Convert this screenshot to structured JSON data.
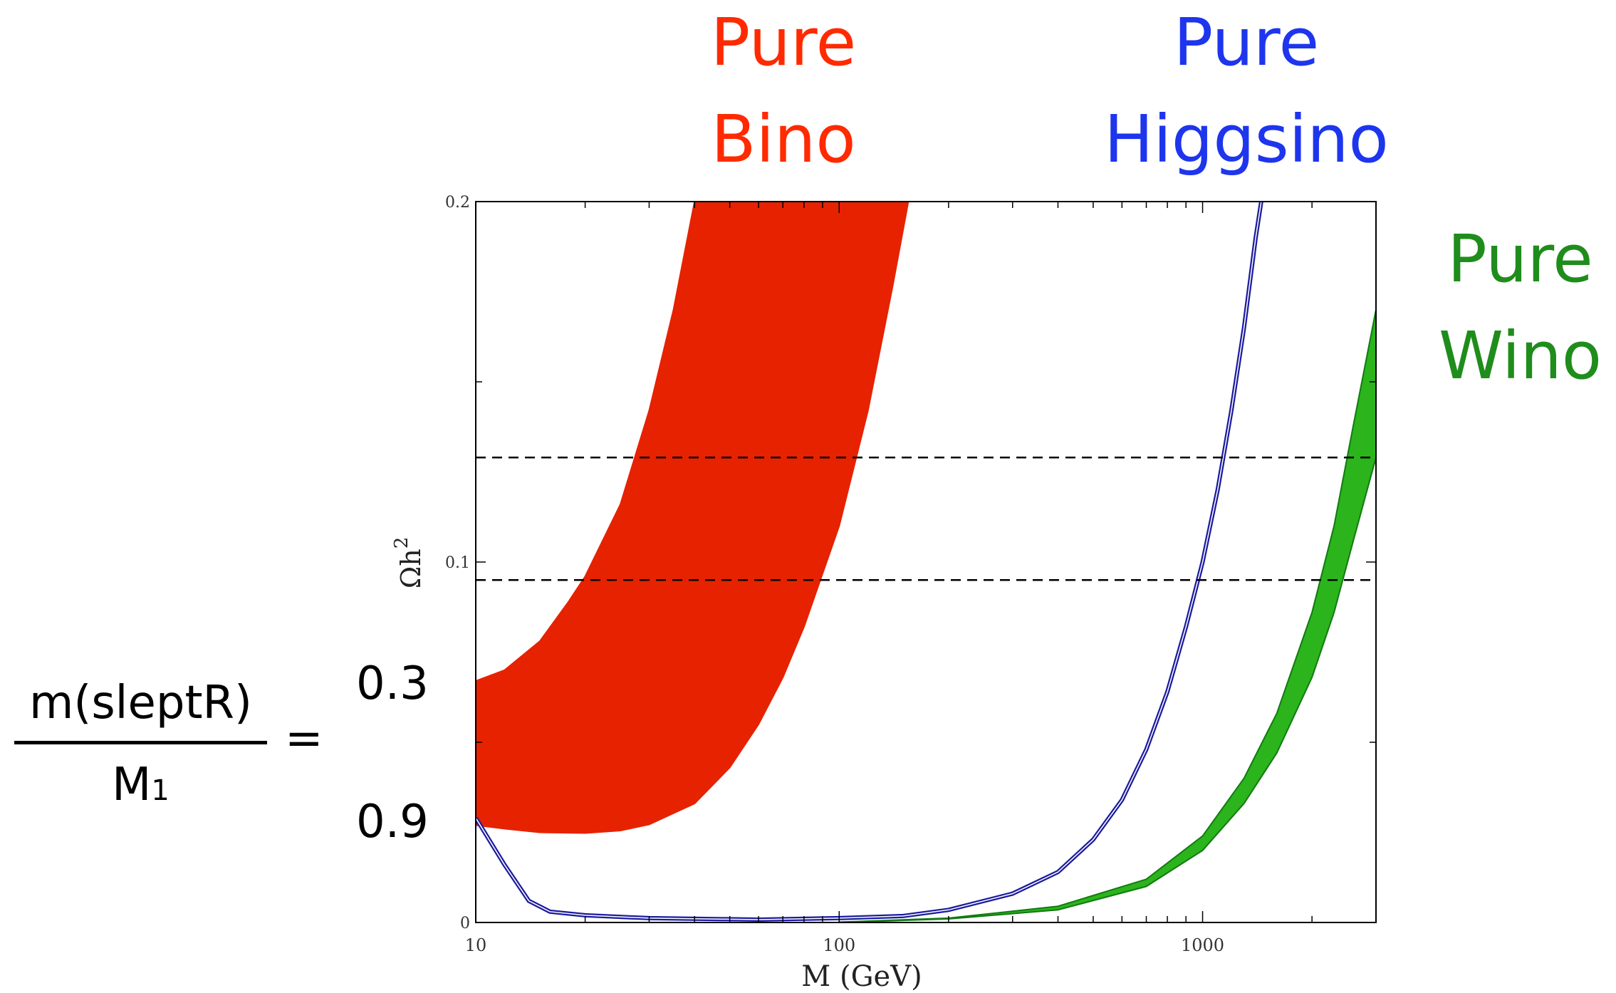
{
  "labels": {
    "bino": [
      "Pure",
      "Bino"
    ],
    "higgsino": [
      "Pure",
      "Higgsino"
    ],
    "wino": [
      "Pure",
      "Wino"
    ]
  },
  "colors": {
    "bino": "#e62200",
    "higgsino": "#1f3fd6",
    "higgsino_curve": "#1c1c9e",
    "wino": "#2bb41c",
    "wino_curve": "#117a11",
    "text_bino": "#ff2a00",
    "text_higgsino": "#1e35ee",
    "text_wino": "#1f8d1c"
  },
  "formula": {
    "numerator": "m(sleptR)",
    "denominator": "M",
    "denominator_sub": "1",
    "equals": "=",
    "ratio_top": "0.3",
    "ratio_bottom": "0.9"
  },
  "chart_data": {
    "type": "area",
    "xlabel": "M (GeV)",
    "ylabel": "Ωh",
    "ylabel_sup": "2",
    "xscale": "log",
    "xlim": [
      10,
      3000
    ],
    "ylim": [
      0,
      0.2
    ],
    "x_ticks": [
      "10",
      "100",
      "1000"
    ],
    "y_ticks": [
      "0",
      "0.1",
      "0.2"
    ],
    "reference_lines": [
      0.095,
      0.129
    ],
    "bands": [
      {
        "key": "bino",
        "upper": [
          [
            10,
            0.067
          ],
          [
            12,
            0.07
          ],
          [
            15,
            0.078
          ],
          [
            18,
            0.089
          ],
          [
            20,
            0.096
          ],
          [
            25,
            0.116
          ],
          [
            30,
            0.142
          ],
          [
            35,
            0.17
          ],
          [
            40,
            0.2
          ]
        ],
        "lower": [
          [
            10,
            0.027
          ],
          [
            12,
            0.026
          ],
          [
            15,
            0.025
          ],
          [
            20,
            0.0248
          ],
          [
            25,
            0.0255
          ],
          [
            30,
            0.0272
          ],
          [
            40,
            0.033
          ],
          [
            50,
            0.043
          ],
          [
            60,
            0.055
          ],
          [
            70,
            0.068
          ],
          [
            80,
            0.082
          ],
          [
            100,
            0.11
          ],
          [
            120,
            0.142
          ],
          [
            140,
            0.176
          ],
          [
            155,
            0.2
          ]
        ]
      },
      {
        "key": "wino",
        "upper": [
          [
            100,
            0.0001
          ],
          [
            200,
            0.0012
          ],
          [
            400,
            0.0045
          ],
          [
            700,
            0.012
          ],
          [
            1000,
            0.024
          ],
          [
            1300,
            0.04
          ],
          [
            1600,
            0.058
          ],
          [
            2000,
            0.086
          ],
          [
            2300,
            0.11
          ],
          [
            2600,
            0.138
          ],
          [
            3000,
            0.17
          ],
          [
            3000,
            0.2
          ]
        ],
        "lower": [
          [
            100,
            0.0
          ],
          [
            200,
            0.001
          ],
          [
            400,
            0.0035
          ],
          [
            700,
            0.01
          ],
          [
            1000,
            0.02
          ],
          [
            1300,
            0.033
          ],
          [
            1600,
            0.047
          ],
          [
            2000,
            0.068
          ],
          [
            2300,
            0.086
          ],
          [
            2600,
            0.106
          ],
          [
            3000,
            0.129
          ]
        ]
      }
    ],
    "lines": [
      {
        "key": "higgsino",
        "points": [
          [
            10,
            0.029
          ],
          [
            12,
            0.016
          ],
          [
            14,
            0.006
          ],
          [
            16,
            0.003
          ],
          [
            20,
            0.002
          ],
          [
            30,
            0.0012
          ],
          [
            60,
            0.0008
          ],
          [
            100,
            0.0012
          ],
          [
            150,
            0.0018
          ],
          [
            200,
            0.0035
          ],
          [
            300,
            0.008
          ],
          [
            400,
            0.014
          ],
          [
            500,
            0.023
          ],
          [
            600,
            0.034
          ],
          [
            700,
            0.048
          ],
          [
            800,
            0.064
          ],
          [
            900,
            0.082
          ],
          [
            1000,
            0.1
          ],
          [
            1100,
            0.12
          ],
          [
            1200,
            0.142
          ],
          [
            1300,
            0.165
          ],
          [
            1400,
            0.19
          ],
          [
            1450,
            0.2
          ]
        ]
      }
    ]
  }
}
